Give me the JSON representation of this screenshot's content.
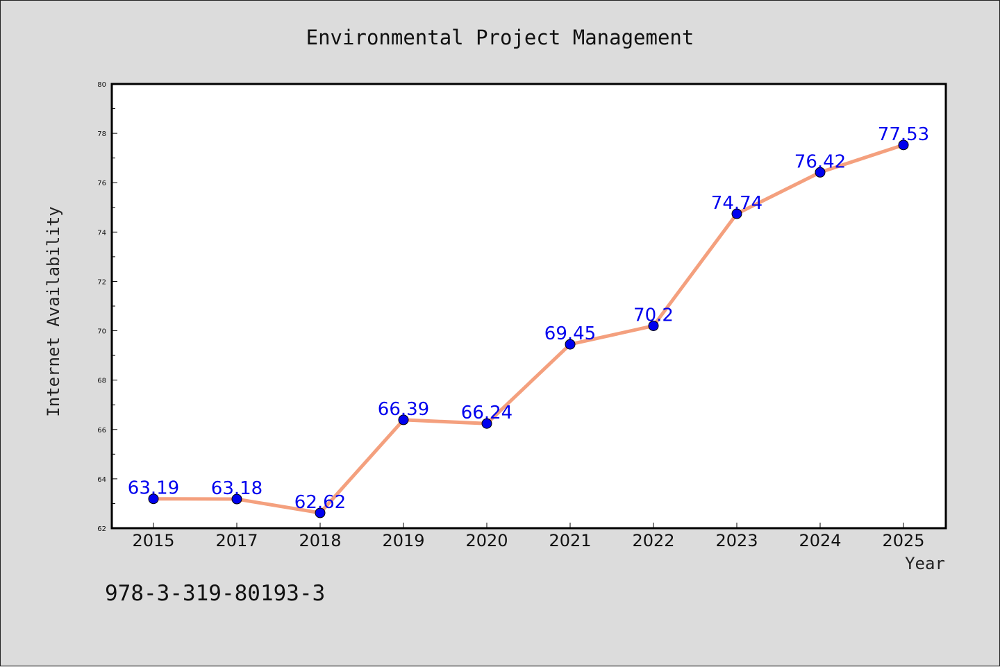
{
  "chart_data": {
    "type": "line",
    "title": "Environmental Project Management",
    "xlabel": "Year",
    "ylabel": "Internet Availability",
    "categories": [
      "2015",
      "2017",
      "2018",
      "2019",
      "2020",
      "2021",
      "2022",
      "2023",
      "2024",
      "2025"
    ],
    "series": [
      {
        "values": [
          63.19,
          63.18,
          62.62,
          66.39,
          66.24,
          69.45,
          70.2,
          74.74,
          76.42,
          77.53
        ],
        "labels": [
          "63.19",
          "63.18",
          "62.62",
          "66.39",
          "66.24",
          "69.45",
          "70.2",
          "74.74",
          "76.42",
          "77.53"
        ],
        "line_color": "#f4a07e",
        "marker_color": "#0000ee",
        "label_color": "#0000ee"
      }
    ],
    "ylim": [
      62,
      80
    ],
    "yticks": [
      62,
      64,
      66,
      68,
      70,
      72,
      74,
      76,
      78,
      80
    ],
    "grid": false,
    "legend": "none"
  },
  "footnote": "978-3-319-80193-3"
}
